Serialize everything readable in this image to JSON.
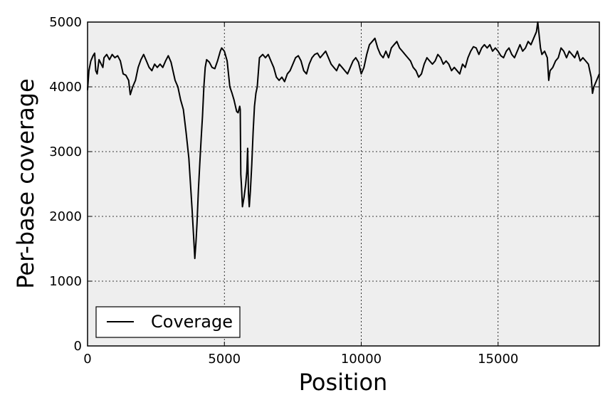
{
  "chart_data": {
    "type": "line",
    "title": "",
    "xlabel": "Position",
    "ylabel": "Per-base coverage",
    "xlim": [
      0,
      18700
    ],
    "ylim": [
      0,
      5000
    ],
    "xticks": [
      0,
      5000,
      10000,
      15000
    ],
    "yticks": [
      0,
      1000,
      2000,
      3000,
      4000,
      5000
    ],
    "xtick_labels": [
      "0",
      "5000",
      "10000",
      "15000"
    ],
    "ytick_labels": [
      "0",
      "1000",
      "2000",
      "3000",
      "4000",
      "5000"
    ],
    "grid": true,
    "legend": {
      "position": "lower-left",
      "entries": [
        "Coverage"
      ]
    },
    "colors": {
      "line": "#000000",
      "plot_bg": "#eeeeee",
      "grid": "#000000"
    },
    "series": [
      {
        "name": "Coverage",
        "points": [
          [
            0,
            3950
          ],
          [
            50,
            4250
          ],
          [
            120,
            4400
          ],
          [
            200,
            4480
          ],
          [
            260,
            4520
          ],
          [
            300,
            4250
          ],
          [
            350,
            4200
          ],
          [
            420,
            4420
          ],
          [
            500,
            4350
          ],
          [
            560,
            4300
          ],
          [
            600,
            4450
          ],
          [
            700,
            4500
          ],
          [
            800,
            4420
          ],
          [
            900,
            4500
          ],
          [
            1000,
            4450
          ],
          [
            1100,
            4480
          ],
          [
            1200,
            4400
          ],
          [
            1300,
            4200
          ],
          [
            1400,
            4180
          ],
          [
            1500,
            4100
          ],
          [
            1560,
            3880
          ],
          [
            1650,
            4000
          ],
          [
            1750,
            4100
          ],
          [
            1850,
            4300
          ],
          [
            1950,
            4420
          ],
          [
            2050,
            4500
          ],
          [
            2150,
            4400
          ],
          [
            2250,
            4300
          ],
          [
            2350,
            4250
          ],
          [
            2450,
            4350
          ],
          [
            2550,
            4300
          ],
          [
            2650,
            4350
          ],
          [
            2750,
            4300
          ],
          [
            2850,
            4400
          ],
          [
            2950,
            4480
          ],
          [
            3050,
            4380
          ],
          [
            3200,
            4100
          ],
          [
            3300,
            4000
          ],
          [
            3400,
            3800
          ],
          [
            3500,
            3650
          ],
          [
            3600,
            3300
          ],
          [
            3700,
            2900
          ],
          [
            3760,
            2500
          ],
          [
            3820,
            2100
          ],
          [
            3880,
            1650
          ],
          [
            3920,
            1350
          ],
          [
            3960,
            1600
          ],
          [
            4000,
            1900
          ],
          [
            4050,
            2400
          ],
          [
            4100,
            2800
          ],
          [
            4150,
            3200
          ],
          [
            4200,
            3550
          ],
          [
            4250,
            4000
          ],
          [
            4300,
            4300
          ],
          [
            4350,
            4420
          ],
          [
            4450,
            4380
          ],
          [
            4550,
            4300
          ],
          [
            4650,
            4280
          ],
          [
            4750,
            4400
          ],
          [
            4850,
            4550
          ],
          [
            4900,
            4600
          ],
          [
            5000,
            4550
          ],
          [
            5100,
            4400
          ],
          [
            5150,
            4200
          ],
          [
            5200,
            4000
          ],
          [
            5280,
            3900
          ],
          [
            5350,
            3800
          ],
          [
            5450,
            3620
          ],
          [
            5500,
            3600
          ],
          [
            5560,
            3700
          ],
          [
            5580,
            3650
          ],
          [
            5600,
            2650
          ],
          [
            5620,
            2500
          ],
          [
            5660,
            2150
          ],
          [
            5720,
            2300
          ],
          [
            5780,
            2500
          ],
          [
            5820,
            2700
          ],
          [
            5850,
            3050
          ],
          [
            5880,
            2350
          ],
          [
            5910,
            2150
          ],
          [
            5950,
            2400
          ],
          [
            6000,
            2800
          ],
          [
            6050,
            3300
          ],
          [
            6100,
            3700
          ],
          [
            6150,
            3900
          ],
          [
            6200,
            4000
          ],
          [
            6280,
            4450
          ],
          [
            6400,
            4500
          ],
          [
            6500,
            4450
          ],
          [
            6600,
            4500
          ],
          [
            6700,
            4400
          ],
          [
            6800,
            4300
          ],
          [
            6900,
            4150
          ],
          [
            7000,
            4100
          ],
          [
            7100,
            4150
          ],
          [
            7200,
            4080
          ],
          [
            7300,
            4200
          ],
          [
            7400,
            4250
          ],
          [
            7500,
            4350
          ],
          [
            7600,
            4450
          ],
          [
            7700,
            4480
          ],
          [
            7800,
            4400
          ],
          [
            7900,
            4250
          ],
          [
            8000,
            4200
          ],
          [
            8100,
            4350
          ],
          [
            8200,
            4450
          ],
          [
            8300,
            4500
          ],
          [
            8400,
            4520
          ],
          [
            8500,
            4450
          ],
          [
            8600,
            4500
          ],
          [
            8700,
            4550
          ],
          [
            8800,
            4450
          ],
          [
            8900,
            4350
          ],
          [
            9000,
            4300
          ],
          [
            9100,
            4250
          ],
          [
            9200,
            4350
          ],
          [
            9300,
            4300
          ],
          [
            9400,
            4250
          ],
          [
            9500,
            4200
          ],
          [
            9600,
            4300
          ],
          [
            9700,
            4400
          ],
          [
            9800,
            4450
          ],
          [
            9900,
            4380
          ],
          [
            10000,
            4200
          ],
          [
            10100,
            4300
          ],
          [
            10200,
            4500
          ],
          [
            10300,
            4650
          ],
          [
            10400,
            4700
          ],
          [
            10500,
            4750
          ],
          [
            10600,
            4600
          ],
          [
            10700,
            4500
          ],
          [
            10800,
            4450
          ],
          [
            10900,
            4550
          ],
          [
            11000,
            4450
          ],
          [
            11100,
            4600
          ],
          [
            11200,
            4650
          ],
          [
            11300,
            4700
          ],
          [
            11400,
            4600
          ],
          [
            11500,
            4550
          ],
          [
            11600,
            4500
          ],
          [
            11700,
            4450
          ],
          [
            11800,
            4400
          ],
          [
            11900,
            4300
          ],
          [
            12000,
            4250
          ],
          [
            12100,
            4150
          ],
          [
            12200,
            4200
          ],
          [
            12300,
            4350
          ],
          [
            12400,
            4450
          ],
          [
            12500,
            4400
          ],
          [
            12600,
            4350
          ],
          [
            12700,
            4400
          ],
          [
            12800,
            4500
          ],
          [
            12900,
            4450
          ],
          [
            13000,
            4350
          ],
          [
            13100,
            4400
          ],
          [
            13200,
            4350
          ],
          [
            13300,
            4250
          ],
          [
            13400,
            4300
          ],
          [
            13500,
            4250
          ],
          [
            13600,
            4200
          ],
          [
            13700,
            4350
          ],
          [
            13800,
            4300
          ],
          [
            13900,
            4450
          ],
          [
            14000,
            4550
          ],
          [
            14100,
            4620
          ],
          [
            14200,
            4600
          ],
          [
            14300,
            4500
          ],
          [
            14400,
            4600
          ],
          [
            14500,
            4650
          ],
          [
            14600,
            4600
          ],
          [
            14700,
            4650
          ],
          [
            14800,
            4550
          ],
          [
            14900,
            4600
          ],
          [
            15000,
            4550
          ],
          [
            15100,
            4480
          ],
          [
            15200,
            4450
          ],
          [
            15300,
            4550
          ],
          [
            15400,
            4600
          ],
          [
            15500,
            4500
          ],
          [
            15600,
            4450
          ],
          [
            15700,
            4550
          ],
          [
            15800,
            4650
          ],
          [
            15900,
            4550
          ],
          [
            16000,
            4600
          ],
          [
            16100,
            4700
          ],
          [
            16200,
            4650
          ],
          [
            16300,
            4750
          ],
          [
            16400,
            4850
          ],
          [
            16450,
            5000
          ],
          [
            16500,
            4800
          ],
          [
            16550,
            4600
          ],
          [
            16600,
            4500
          ],
          [
            16700,
            4550
          ],
          [
            16800,
            4450
          ],
          [
            16850,
            4100
          ],
          [
            16900,
            4250
          ],
          [
            17000,
            4300
          ],
          [
            17100,
            4400
          ],
          [
            17200,
            4450
          ],
          [
            17300,
            4600
          ],
          [
            17400,
            4550
          ],
          [
            17500,
            4450
          ],
          [
            17600,
            4550
          ],
          [
            17700,
            4500
          ],
          [
            17800,
            4450
          ],
          [
            17900,
            4550
          ],
          [
            18000,
            4400
          ],
          [
            18100,
            4450
          ],
          [
            18200,
            4400
          ],
          [
            18300,
            4350
          ],
          [
            18400,
            4150
          ],
          [
            18450,
            3900
          ],
          [
            18500,
            4000
          ],
          [
            18600,
            4100
          ],
          [
            18700,
            4200
          ]
        ]
      }
    ]
  }
}
